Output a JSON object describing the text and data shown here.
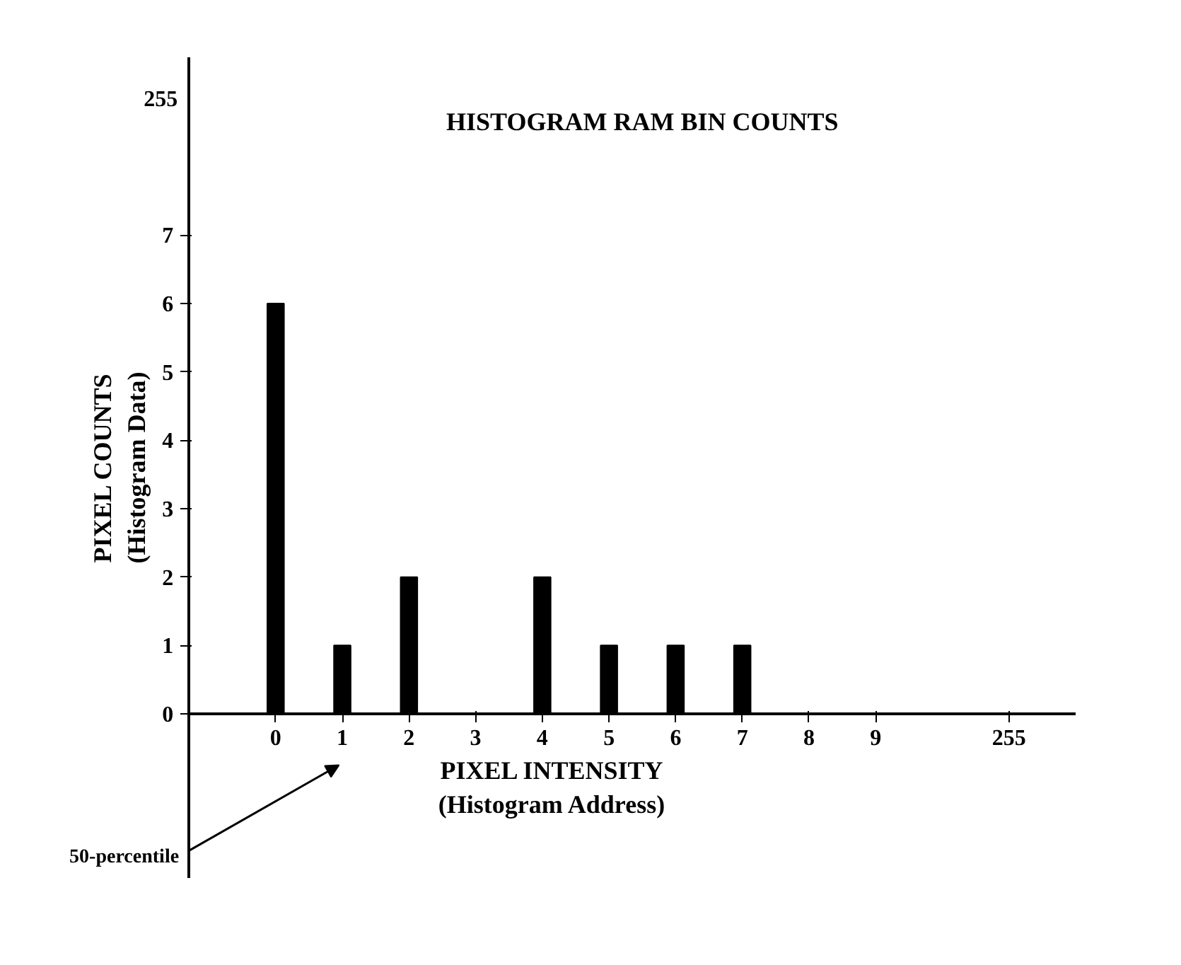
{
  "chart_data": {
    "type": "bar",
    "title": "HISTOGRAM RAM BIN COUNTS",
    "xlabel": "PIXEL INTENSITY\n(Histogram Address)",
    "ylabel": "PIXEL COUNTS\n(Histogram Data)",
    "categories": [
      "0",
      "1",
      "2",
      "3",
      "4",
      "5",
      "6",
      "7",
      "8",
      "9",
      null,
      "255"
    ],
    "values": [
      6,
      1,
      2,
      0,
      2,
      1,
      1,
      1,
      0,
      0,
      null,
      0
    ],
    "color": "#000000",
    "ylim": [
      -2.4,
      9.6
    ],
    "yticks": [
      0,
      1,
      2,
      3,
      4,
      5,
      6,
      7
    ],
    "grid": false,
    "annotations": [
      "50-percentile",
      "255"
    ]
  }
}
